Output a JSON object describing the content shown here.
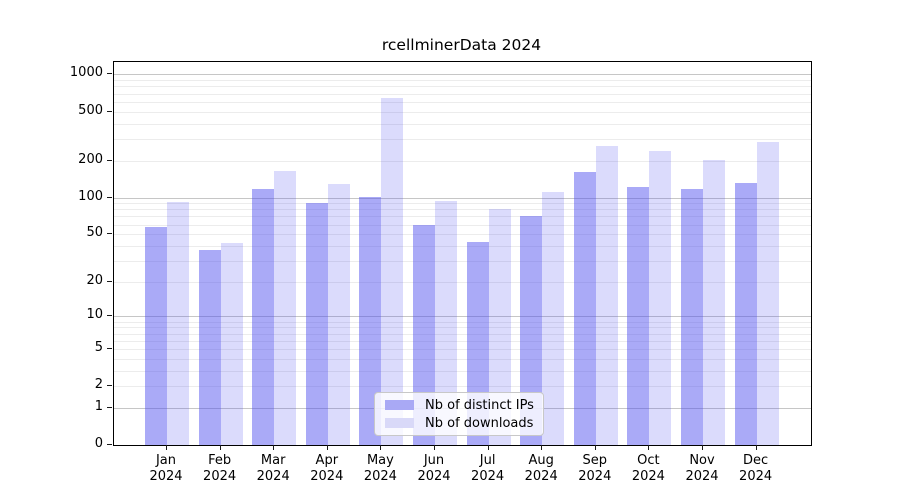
{
  "title": "rcellminerData 2024",
  "chart_data": {
    "type": "bar",
    "title": "rcellminerData 2024",
    "xlabel": "",
    "ylabel": "",
    "yscale": "log1p",
    "grid": true,
    "legend_position": "lower center",
    "ylim": [
      0,
      1260
    ],
    "y_ticks": [
      1000,
      500,
      200,
      100,
      50,
      20,
      10,
      5,
      2,
      1,
      0
    ],
    "y_tick_labels": [
      "1000",
      "500",
      "200",
      "100",
      "50",
      "20",
      "10",
      "5",
      "2",
      "1",
      "0"
    ],
    "categories": [
      "Jan 2024",
      "Feb 2024",
      "Mar 2024",
      "Apr 2024",
      "May 2024",
      "Jun 2024",
      "Jul 2024",
      "Aug 2024",
      "Sep 2024",
      "Oct 2024",
      "Nov 2024",
      "Dec 2024"
    ],
    "series": [
      {
        "name": "Nb of distinct IPs",
        "color": "#4a4aee",
        "alpha": 0.47,
        "rendered_color": "#a9a9f5",
        "values": [
          57,
          37,
          117,
          91,
          101,
          60,
          43,
          70,
          161,
          122,
          117,
          132
        ]
      },
      {
        "name": "Nb of downloads",
        "color": "#4a4aee",
        "alpha": 0.2,
        "rendered_color": "#d9d9f8",
        "values": [
          92,
          42,
          164,
          130,
          645,
          94,
          81,
          111,
          263,
          239,
          201,
          285
        ]
      }
    ]
  },
  "legend": {
    "items": [
      {
        "label": "Nb of distinct IPs",
        "swatch_color": "#a9a9f5"
      },
      {
        "label": "Nb of downloads",
        "swatch_color": "#d9d9f8"
      }
    ]
  },
  "colors": {
    "major_grid": "#c6c6c6",
    "minor_grid": "#ececec",
    "spine": "#000000",
    "background": "#ffffff"
  }
}
